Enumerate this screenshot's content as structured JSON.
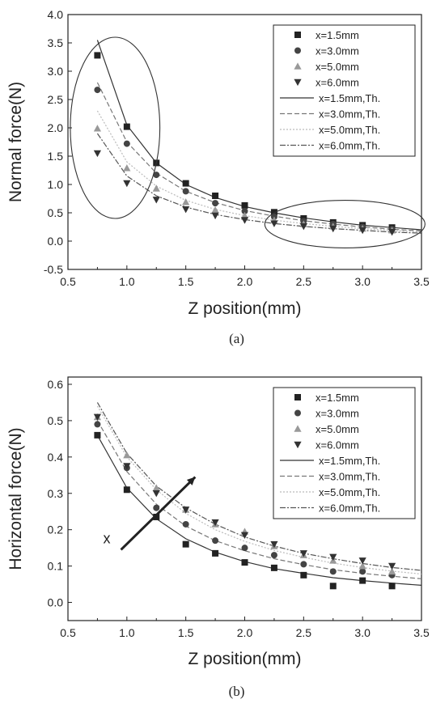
{
  "chart_data": [
    {
      "type": "scatter",
      "panel_label": "(a)",
      "xlabel": "Z position(mm)",
      "ylabel": "Normal force(N)",
      "xlim": [
        0.5,
        3.5
      ],
      "ylim": [
        -0.5,
        4.0
      ],
      "xticks": [
        "0.5",
        "1.0",
        "1.5",
        "2.0",
        "2.5",
        "3.0",
        "3.5"
      ],
      "yticks": [
        "-0.5",
        "0.0",
        "0.5",
        "1.0",
        "1.5",
        "2.0",
        "2.5",
        "3.0",
        "3.5",
        "4.0"
      ],
      "legend_position": "top-right",
      "x": [
        0.75,
        1.0,
        1.25,
        1.5,
        1.75,
        2.0,
        2.25,
        2.5,
        2.75,
        3.0,
        3.25
      ],
      "series": [
        {
          "name": "x=1.5mm",
          "marker": "square",
          "color": "#222222",
          "values": [
            3.28,
            2.02,
            1.38,
            1.02,
            0.8,
            0.63,
            0.51,
            0.4,
            0.33,
            0.28,
            0.24
          ]
        },
        {
          "name": "x=3.0mm",
          "marker": "circle",
          "color": "#444444",
          "values": [
            2.67,
            1.72,
            1.17,
            0.88,
            0.67,
            0.53,
            0.43,
            0.35,
            0.3,
            0.25,
            0.21
          ]
        },
        {
          "name": "x=5.0mm",
          "marker": "triangle-up",
          "color": "#999999",
          "values": [
            1.99,
            1.29,
            0.93,
            0.69,
            0.55,
            0.45,
            0.37,
            0.3,
            0.26,
            0.22,
            0.19
          ]
        },
        {
          "name": "x=6.0mm",
          "marker": "triangle-down",
          "color": "#333333",
          "values": [
            1.55,
            1.02,
            0.73,
            0.56,
            0.45,
            0.37,
            0.31,
            0.26,
            0.22,
            0.19,
            0.16
          ]
        }
      ],
      "theory_series": [
        {
          "name": "x=1.5mm,Th.",
          "color": "#333333",
          "x": [
            0.75,
            1.0,
            1.25,
            1.5,
            1.75,
            2.0,
            2.25,
            2.5,
            2.75,
            3.0,
            3.25,
            3.5
          ],
          "values": [
            3.55,
            2.05,
            1.38,
            1.0,
            0.77,
            0.61,
            0.5,
            0.41,
            0.34,
            0.28,
            0.24,
            0.2
          ]
        },
        {
          "name": "x=3.0mm,Th.",
          "color": "#777777",
          "x": [
            0.75,
            1.0,
            1.25,
            1.5,
            1.75,
            2.0,
            2.25,
            2.5,
            2.75,
            3.0,
            3.25,
            3.5
          ],
          "values": [
            2.8,
            1.75,
            1.2,
            0.88,
            0.68,
            0.54,
            0.44,
            0.36,
            0.3,
            0.25,
            0.21,
            0.18
          ]
        },
        {
          "name": "x=5.0mm,Th.",
          "color": "#bbbbbb",
          "x": [
            0.75,
            1.0,
            1.25,
            1.5,
            1.75,
            2.0,
            2.25,
            2.5,
            2.75,
            3.0,
            3.25,
            3.5
          ],
          "values": [
            2.3,
            1.4,
            0.97,
            0.72,
            0.56,
            0.45,
            0.37,
            0.31,
            0.26,
            0.22,
            0.19,
            0.16
          ]
        },
        {
          "name": "x=6.0mm,Th.",
          "color": "#555555",
          "x": [
            0.75,
            1.0,
            1.25,
            1.5,
            1.75,
            2.0,
            2.25,
            2.5,
            2.75,
            3.0,
            3.25,
            3.5
          ],
          "values": [
            1.9,
            1.15,
            0.8,
            0.6,
            0.47,
            0.38,
            0.31,
            0.26,
            0.22,
            0.19,
            0.16,
            0.14
          ]
        }
      ],
      "annotations": [
        {
          "shape": "ellipse",
          "cx": 0.9,
          "cy": 2.0,
          "rx": 0.38,
          "ry": 1.6
        },
        {
          "shape": "ellipse",
          "cx": 2.85,
          "cy": 0.3,
          "rx": 0.68,
          "ry": 0.42
        }
      ]
    },
    {
      "type": "scatter",
      "panel_label": "(b)",
      "xlabel": "Z position(mm)",
      "ylabel": "Horizontal force(N)",
      "xlim": [
        0.5,
        3.5
      ],
      "ylim": [
        -0.05,
        0.62
      ],
      "xticks": [
        "0.5",
        "1.0",
        "1.5",
        "2.0",
        "2.5",
        "3.0",
        "3.5"
      ],
      "yticks": [
        "0.0",
        "0.1",
        "0.2",
        "0.3",
        "0.4",
        "0.5",
        "0.6"
      ],
      "legend_position": "top-right",
      "x": [
        0.75,
        1.0,
        1.25,
        1.5,
        1.75,
        2.0,
        2.25,
        2.5,
        2.75,
        3.0,
        3.25
      ],
      "series": [
        {
          "name": "x=1.5mm",
          "marker": "square",
          "color": "#222222",
          "values": [
            0.46,
            0.31,
            0.235,
            0.16,
            0.135,
            0.11,
            0.095,
            0.075,
            0.045,
            0.06,
            0.045
          ]
        },
        {
          "name": "x=3.0mm",
          "marker": "circle",
          "color": "#444444",
          "values": [
            0.49,
            0.37,
            0.26,
            0.215,
            0.17,
            0.15,
            0.13,
            0.105,
            0.085,
            0.085,
            0.075
          ]
        },
        {
          "name": "x=5.0mm",
          "marker": "triangle-up",
          "color": "#999999",
          "values": [
            0.51,
            0.405,
            0.315,
            0.255,
            0.215,
            0.195,
            0.155,
            0.13,
            0.115,
            0.1,
            0.085
          ]
        },
        {
          "name": "x=6.0mm",
          "marker": "triangle-down",
          "color": "#333333",
          "values": [
            0.51,
            0.375,
            0.3,
            0.255,
            0.22,
            0.185,
            0.16,
            0.135,
            0.125,
            0.115,
            0.1
          ]
        }
      ],
      "theory_series": [
        {
          "name": "x=1.5mm,Th.",
          "color": "#333333",
          "x": [
            0.75,
            1.0,
            1.25,
            1.5,
            1.75,
            2.0,
            2.25,
            2.5,
            2.75,
            3.0,
            3.25,
            3.5
          ],
          "values": [
            0.46,
            0.315,
            0.23,
            0.175,
            0.138,
            0.112,
            0.093,
            0.08,
            0.068,
            0.06,
            0.053,
            0.047
          ]
        },
        {
          "name": "x=3.0mm,Th.",
          "color": "#777777",
          "x": [
            0.75,
            1.0,
            1.25,
            1.5,
            1.75,
            2.0,
            2.25,
            2.5,
            2.75,
            3.0,
            3.25,
            3.5
          ],
          "values": [
            0.5,
            0.36,
            0.27,
            0.21,
            0.17,
            0.142,
            0.12,
            0.104,
            0.09,
            0.08,
            0.072,
            0.065
          ]
        },
        {
          "name": "x=5.0mm,Th.",
          "color": "#bbbbbb",
          "x": [
            0.75,
            1.0,
            1.25,
            1.5,
            1.75,
            2.0,
            2.25,
            2.5,
            2.75,
            3.0,
            3.25,
            3.5
          ],
          "values": [
            0.54,
            0.4,
            0.31,
            0.245,
            0.2,
            0.168,
            0.143,
            0.124,
            0.108,
            0.096,
            0.086,
            0.078
          ]
        },
        {
          "name": "x=6.0mm,Th.",
          "color": "#555555",
          "x": [
            0.75,
            1.0,
            1.25,
            1.5,
            1.75,
            2.0,
            2.25,
            2.5,
            2.75,
            3.0,
            3.25,
            3.5
          ],
          "values": [
            0.55,
            0.41,
            0.32,
            0.26,
            0.215,
            0.18,
            0.155,
            0.135,
            0.12,
            0.107,
            0.096,
            0.088
          ]
        }
      ],
      "annotations": [
        {
          "shape": "arrow",
          "text": "x",
          "from": [
            0.95,
            0.145
          ],
          "to": [
            1.58,
            0.345
          ]
        }
      ]
    }
  ]
}
